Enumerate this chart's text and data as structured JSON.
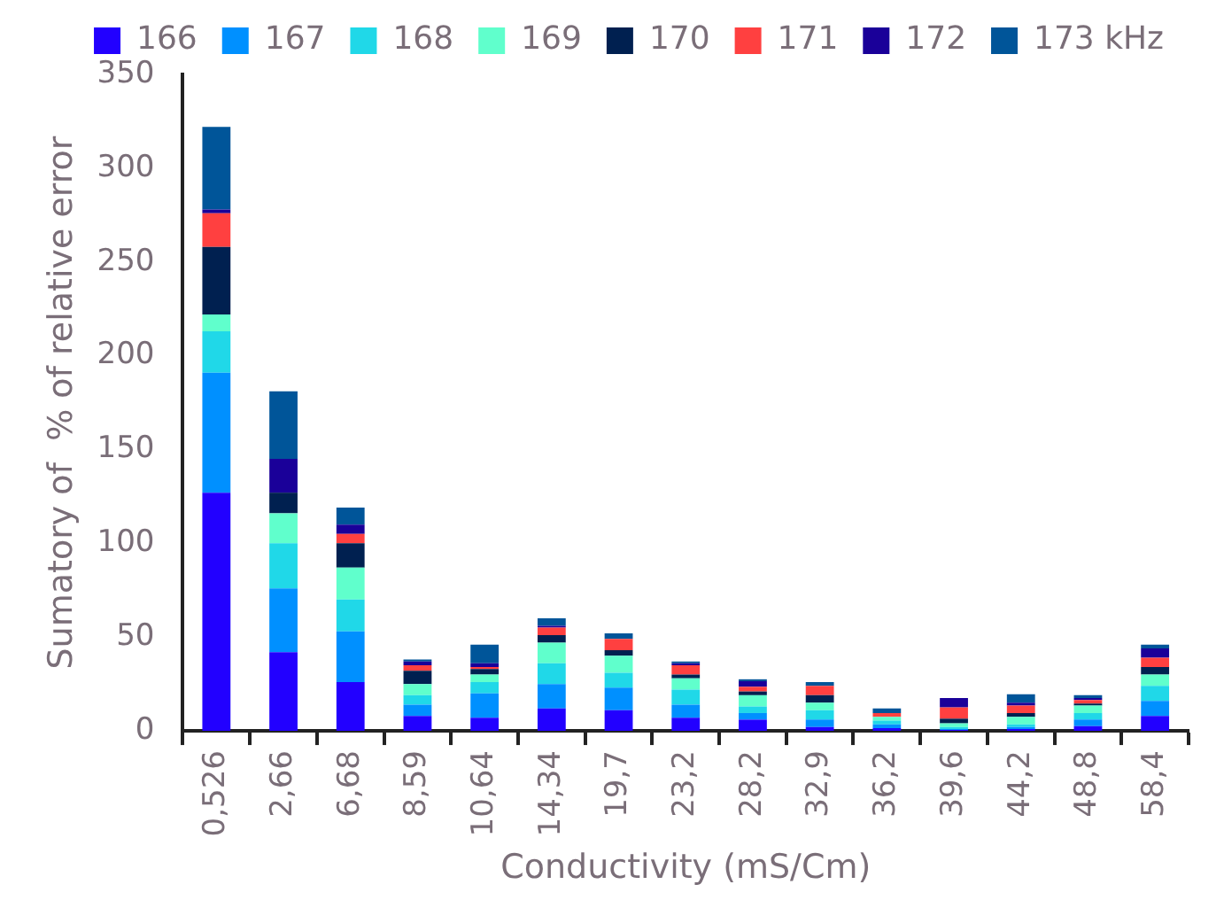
{
  "chart_data": {
    "type": "bar",
    "stacked": true,
    "xlabel": "Conductivity (mS/Cm)",
    "ylabel": "Sumatory of  % of relative error",
    "categories": [
      "0,526",
      "2,66",
      "6,68",
      "8,59",
      "10,64",
      "14,34",
      "19,7",
      "23,2",
      "28,2",
      "32,9",
      "36,2",
      "39,6",
      "44,2",
      "48,8",
      "58,4"
    ],
    "series": [
      {
        "name": "166",
        "color": "#2200ff",
        "values": [
          127,
          42,
          26,
          8,
          7,
          12,
          11,
          7,
          6,
          2,
          1.5,
          0.5,
          1,
          2.5,
          8
        ]
      },
      {
        "name": "167",
        "color": "#0090ff",
        "values": [
          64,
          34,
          27,
          6,
          13,
          13,
          12,
          7,
          3.5,
          4,
          2,
          0.5,
          1,
          3.5,
          8
        ]
      },
      {
        "name": "168",
        "color": "#20d8e8",
        "values": [
          22,
          24,
          17,
          5,
          6,
          11,
          8,
          8,
          3.5,
          5,
          2,
          1,
          1.5,
          3.5,
          8
        ]
      },
      {
        "name": "169",
        "color": "#60ffcc",
        "values": [
          9,
          16,
          17,
          6,
          4,
          11,
          9,
          6,
          6,
          4,
          2,
          2,
          4,
          4,
          6
        ]
      },
      {
        "name": "170",
        "color": "#002050",
        "values": [
          36,
          11,
          13,
          7,
          3,
          4,
          3,
          2,
          2,
          4,
          0,
          2.5,
          2,
          1,
          4
        ]
      },
      {
        "name": "171",
        "color": "#ff4040",
        "values": [
          18,
          0,
          5,
          3,
          1,
          4,
          6,
          5,
          2.5,
          5,
          2,
          6,
          4,
          2,
          5
        ]
      },
      {
        "name": "172",
        "color": "#1a0099",
        "values": [
          2,
          18,
          5,
          2,
          2,
          1,
          0,
          1,
          3,
          0,
          0,
          5,
          1.5,
          1,
          5
        ]
      },
      {
        "name": "173 kHz",
        "color": "#005599",
        "values": [
          44,
          36,
          9,
          1,
          10,
          4,
          3,
          1,
          1,
          2,
          2.5,
          0,
          4.5,
          1.5,
          2
        ]
      }
    ],
    "ylim": [
      0,
      350
    ],
    "yticks": [
      0,
      50,
      100,
      150,
      200,
      250,
      300,
      350
    ],
    "grid": false,
    "legend": "top"
  }
}
